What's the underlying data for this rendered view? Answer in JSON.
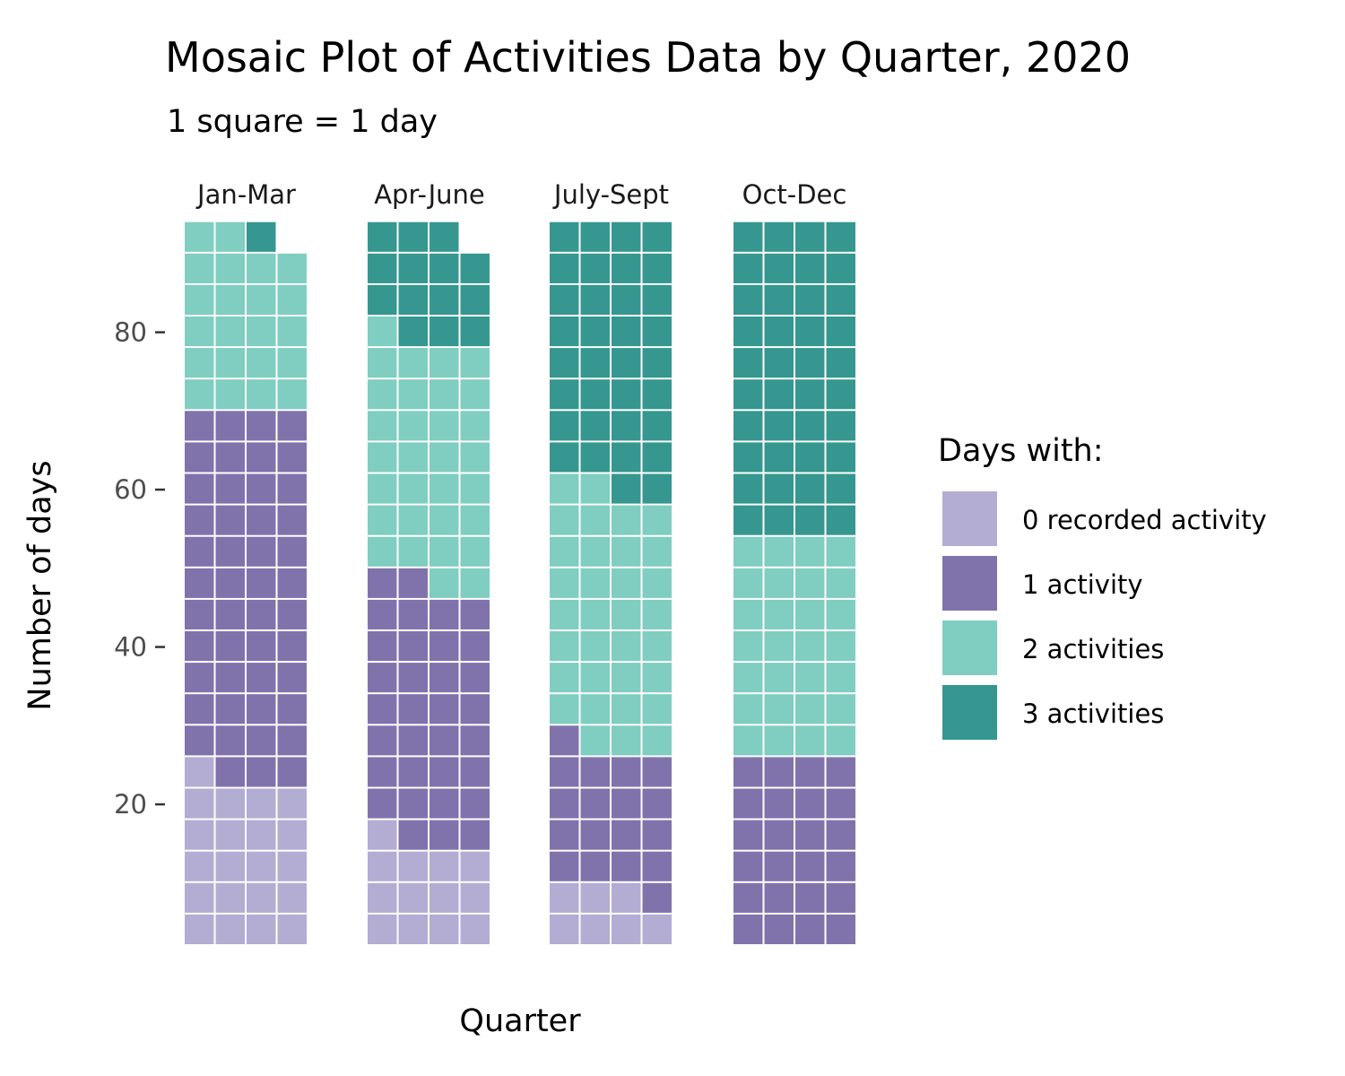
{
  "chart_data": {
    "type": "waffle",
    "title": "Mosaic Plot of Activities Data by Quarter, 2020",
    "subtitle": "1 square = 1 day",
    "xlabel": "Quarter",
    "ylabel": "Number of days",
    "y_ticks": [
      20,
      40,
      60,
      80
    ],
    "units_per_square": 1,
    "squares_per_row": 4,
    "legend": {
      "title": "Days with:",
      "position": "right",
      "items": [
        {
          "label": "0 recorded activity",
          "color": "#b3acd3"
        },
        {
          "label": "1 activity",
          "color": "#8073ac"
        },
        {
          "label": "2 activities",
          "color": "#80cdc1"
        },
        {
          "label": "3 activities",
          "color": "#35978f"
        }
      ]
    },
    "categories": [
      "0 recorded activity",
      "1 activity",
      "2 activities",
      "3 activities"
    ],
    "facets": [
      {
        "name": "Jan-Mar",
        "counts": [
          21,
          47,
          22,
          1
        ]
      },
      {
        "name": "Apr-June",
        "counts": [
          13,
          33,
          31,
          14
        ]
      },
      {
        "name": "July-Sept",
        "counts": [
          7,
          18,
          33,
          34
        ]
      },
      {
        "name": "Oct-Dec",
        "counts": [
          0,
          24,
          28,
          40
        ]
      }
    ],
    "colors": {
      "background": "#ffffff",
      "tile_border": "#ffffff",
      "tick_mark": "#333333"
    }
  }
}
